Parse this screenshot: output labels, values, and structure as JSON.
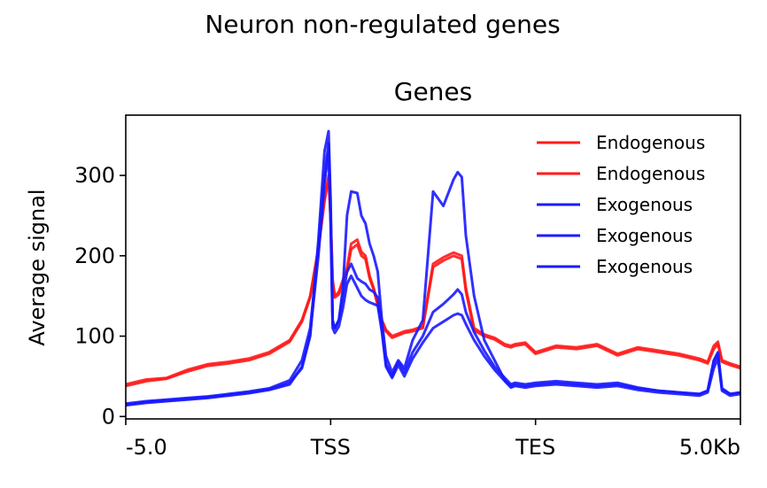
{
  "figure": {
    "suptitle": "Neuron non-regulated genes"
  },
  "chart_data": {
    "type": "line",
    "title": "Genes",
    "xlabel": "",
    "ylabel": "Average signal",
    "ylim": [
      -3,
      375
    ],
    "y_ticks": [
      0,
      100,
      200,
      300
    ],
    "x_ticks": [
      {
        "pos": 0,
        "label": "-5.0"
      },
      {
        "pos": 1,
        "label": "TSS"
      },
      {
        "pos": 2,
        "label": "TES"
      },
      {
        "pos": 3,
        "label": "5.0Kb"
      }
    ],
    "xlim": [
      0,
      3
    ],
    "grid": false,
    "legend_position": "top-right",
    "x": [
      0,
      0.1,
      0.2,
      0.3,
      0.4,
      0.5,
      0.6,
      0.7,
      0.8,
      0.86,
      0.9,
      0.94,
      0.97,
      0.99,
      1.0,
      1.01,
      1.02,
      1.04,
      1.06,
      1.08,
      1.1,
      1.13,
      1.15,
      1.17,
      1.19,
      1.21,
      1.23,
      1.25,
      1.27,
      1.3,
      1.33,
      1.36,
      1.4,
      1.45,
      1.5,
      1.55,
      1.6,
      1.62,
      1.64,
      1.66,
      1.7,
      1.75,
      1.8,
      1.85,
      1.88,
      1.9,
      1.95,
      2.0,
      2.1,
      2.2,
      2.3,
      2.4,
      2.5,
      2.6,
      2.7,
      2.8,
      2.84,
      2.87,
      2.89,
      2.91,
      2.95,
      3.0
    ],
    "series": [
      {
        "name": "Endogenous",
        "color": "#ff1a1a",
        "values": [
          40,
          46,
          48,
          58,
          65,
          68,
          72,
          80,
          95,
          120,
          150,
          210,
          270,
          300,
          250,
          170,
          150,
          155,
          170,
          185,
          215,
          220,
          205,
          200,
          175,
          160,
          140,
          120,
          108,
          100,
          103,
          106,
          108,
          112,
          190,
          198,
          204,
          202,
          200,
          160,
          110,
          102,
          98,
          90,
          88,
          90,
          92,
          80,
          88,
          86,
          90,
          78,
          86,
          82,
          78,
          72,
          68,
          88,
          93,
          70,
          66,
          62
        ]
      },
      {
        "name": "Endogenous",
        "color": "#ff1a1a",
        "values": [
          38,
          44,
          47,
          56,
          63,
          66,
          70,
          78,
          93,
          118,
          148,
          208,
          268,
          296,
          246,
          168,
          148,
          152,
          168,
          180,
          208,
          214,
          200,
          196,
          172,
          158,
          138,
          118,
          106,
          98,
          101,
          104,
          106,
          110,
          186,
          194,
          200,
          198,
          196,
          156,
          107,
          100,
          96,
          88,
          86,
          88,
          90,
          78,
          86,
          84,
          88,
          76,
          84,
          80,
          76,
          70,
          66,
          84,
          90,
          68,
          64,
          60
        ]
      },
      {
        "name": "Exogenous",
        "color": "#1a1aff",
        "values": [
          15,
          18,
          20,
          22,
          24,
          27,
          30,
          34,
          42,
          60,
          100,
          220,
          330,
          355,
          270,
          120,
          110,
          120,
          160,
          250,
          280,
          278,
          250,
          240,
          215,
          200,
          180,
          120,
          75,
          55,
          70,
          60,
          95,
          120,
          280,
          262,
          295,
          304,
          298,
          225,
          150,
          95,
          70,
          45,
          38,
          40,
          38,
          40,
          42,
          40,
          38,
          40,
          35,
          32,
          30,
          28,
          32,
          70,
          80,
          35,
          28,
          30
        ]
      },
      {
        "name": "Exogenous",
        "color": "#1a1aff",
        "values": [
          16,
          19,
          21,
          23,
          25,
          28,
          31,
          35,
          45,
          70,
          110,
          210,
          300,
          340,
          250,
          115,
          110,
          120,
          150,
          180,
          190,
          172,
          168,
          165,
          158,
          155,
          148,
          110,
          65,
          50,
          68,
          55,
          80,
          100,
          130,
          140,
          152,
          158,
          152,
          130,
          105,
          82,
          62,
          48,
          40,
          42,
          40,
          42,
          44,
          42,
          40,
          42,
          36,
          32,
          30,
          28,
          32,
          68,
          78,
          34,
          28,
          30
        ]
      },
      {
        "name": "Exogenous",
        "color": "#1a1aff",
        "values": [
          14,
          17,
          19,
          21,
          23,
          26,
          29,
          33,
          40,
          62,
          102,
          200,
          290,
          330,
          240,
          110,
          104,
          112,
          135,
          165,
          175,
          160,
          150,
          145,
          142,
          140,
          138,
          105,
          62,
          48,
          64,
          50,
          72,
          92,
          110,
          118,
          126,
          128,
          126,
          115,
          95,
          75,
          58,
          44,
          36,
          38,
          36,
          38,
          40,
          38,
          36,
          38,
          33,
          30,
          28,
          26,
          30,
          60,
          72,
          32,
          26,
          28
        ]
      }
    ]
  }
}
